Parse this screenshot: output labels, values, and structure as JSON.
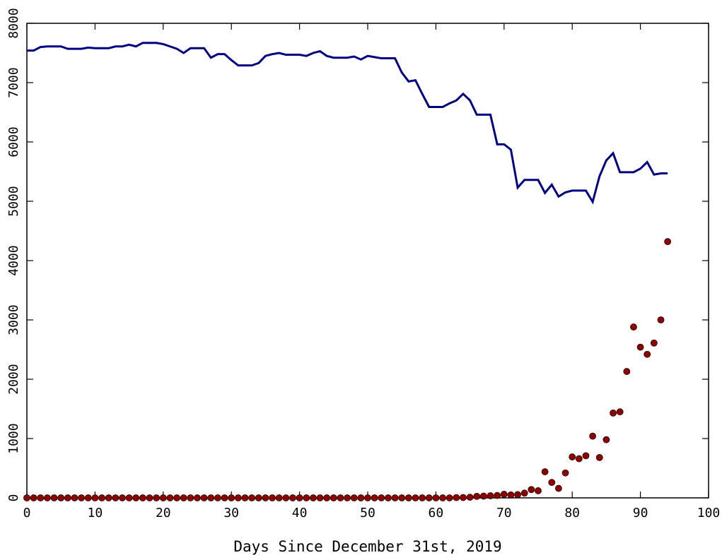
{
  "chart_data": {
    "type": "line",
    "title": "",
    "xlabel": "Days Since December 31st, 2019",
    "ylabel": "",
    "xlim": [
      0,
      100
    ],
    "ylim": [
      0,
      8000
    ],
    "xticks": [
      0,
      10,
      20,
      30,
      40,
      50,
      60,
      70,
      80,
      90,
      100
    ],
    "yticks": [
      0,
      1000,
      2000,
      3000,
      4000,
      5000,
      6000,
      7000,
      8000
    ],
    "xtick_labels": [
      "0",
      "10",
      "20",
      "30",
      "40",
      "50",
      "60",
      "70",
      "80",
      "90",
      "100"
    ],
    "ytick_labels": [
      "0",
      "1000",
      "2000",
      "3000",
      "4000",
      "5000",
      "6000",
      "7000",
      "8000"
    ],
    "grid": false,
    "legend": "none",
    "series": [
      {
        "kind": "line",
        "color": "#000080",
        "x": [
          0,
          1,
          2,
          3,
          4,
          5,
          6,
          7,
          8,
          9,
          10,
          11,
          12,
          13,
          14,
          15,
          16,
          17,
          18,
          19,
          20,
          21,
          22,
          23,
          24,
          25,
          26,
          27,
          28,
          29,
          30,
          31,
          32,
          33,
          34,
          35,
          36,
          37,
          38,
          39,
          40,
          41,
          42,
          43,
          44,
          45,
          46,
          47,
          48,
          49,
          50,
          51,
          52,
          53,
          54,
          55,
          56,
          57,
          58,
          59,
          60,
          61,
          62,
          63,
          64,
          65,
          66,
          67,
          68,
          69,
          70,
          71,
          72,
          73,
          74,
          75,
          76,
          77,
          78,
          79,
          80,
          81,
          82,
          83,
          84,
          85,
          86,
          87,
          88,
          89,
          90,
          91,
          92,
          93,
          94
        ],
        "y": [
          7540,
          7540,
          7600,
          7610,
          7610,
          7610,
          7570,
          7570,
          7570,
          7590,
          7580,
          7580,
          7580,
          7610,
          7610,
          7640,
          7610,
          7670,
          7670,
          7670,
          7650,
          7610,
          7570,
          7500,
          7580,
          7580,
          7580,
          7420,
          7480,
          7480,
          7380,
          7290,
          7290,
          7290,
          7330,
          7450,
          7480,
          7500,
          7470,
          7470,
          7470,
          7450,
          7500,
          7530,
          7450,
          7420,
          7420,
          7420,
          7440,
          7390,
          7450,
          7430,
          7410,
          7410,
          7410,
          7170,
          7020,
          7040,
          6810,
          6590,
          6590,
          6590,
          6650,
          6700,
          6810,
          6700,
          6460,
          6460,
          6460,
          5960,
          5960,
          5870,
          5230,
          5360,
          5360,
          5360,
          5140,
          5280,
          5080,
          5150,
          5180,
          5180,
          5180,
          4990,
          5420,
          5690,
          5810,
          5490,
          5490,
          5490,
          5550,
          5660,
          5450,
          5470,
          5470
        ]
      },
      {
        "kind": "scatter",
        "color": "#8b0000",
        "x": [
          0,
          1,
          2,
          3,
          4,
          5,
          6,
          7,
          8,
          9,
          10,
          11,
          12,
          13,
          14,
          15,
          16,
          17,
          18,
          19,
          20,
          21,
          22,
          23,
          24,
          25,
          26,
          27,
          28,
          29,
          30,
          31,
          32,
          33,
          34,
          35,
          36,
          37,
          38,
          39,
          40,
          41,
          42,
          43,
          44,
          45,
          46,
          47,
          48,
          49,
          50,
          51,
          52,
          53,
          54,
          55,
          56,
          57,
          58,
          59,
          60,
          61,
          62,
          63,
          64,
          65,
          66,
          67,
          68,
          69,
          70,
          71,
          72,
          73,
          74,
          75,
          76,
          77,
          78,
          79,
          80,
          81,
          82,
          83,
          84,
          85,
          86,
          87,
          88,
          89,
          90,
          91,
          92,
          93,
          94
        ],
        "y": [
          0,
          0,
          0,
          0,
          0,
          0,
          0,
          0,
          0,
          0,
          0,
          0,
          0,
          0,
          0,
          0,
          0,
          0,
          0,
          0,
          0,
          0,
          0,
          0,
          0,
          0,
          0,
          0,
          0,
          0,
          0,
          0,
          0,
          0,
          0,
          0,
          0,
          0,
          0,
          0,
          0,
          0,
          0,
          0,
          0,
          0,
          0,
          0,
          0,
          0,
          0,
          0,
          0,
          0,
          0,
          0,
          0,
          0,
          0,
          0,
          0,
          0,
          0,
          4,
          6,
          10,
          25,
          30,
          35,
          40,
          60,
          50,
          55,
          80,
          140,
          120,
          440,
          260,
          160,
          420,
          690,
          660,
          710,
          1040,
          680,
          980,
          1430,
          1450,
          2130,
          2880,
          2540,
          2420,
          2610,
          3000,
          4320
        ]
      }
    ]
  }
}
